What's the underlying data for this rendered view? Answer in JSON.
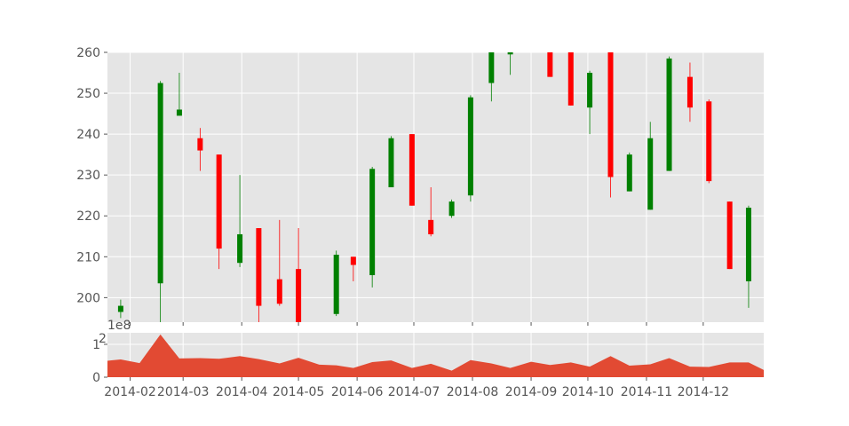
{
  "chart_data": {
    "type": "candlestick",
    "panels": [
      "price",
      "volume"
    ],
    "price": {
      "ylim": [
        194,
        260
      ],
      "yticks": [
        200,
        210,
        220,
        230,
        240,
        250,
        260
      ],
      "grid": true,
      "up_color": "#008000",
      "down_color": "#ff0000",
      "candles": [
        {
          "date": "2014-01-27",
          "open": 196.5,
          "high": 199.5,
          "low": 195.0,
          "close": 198.0
        },
        {
          "date": "2014-02-17",
          "open": 203.5,
          "high": 253.0,
          "low": 194.0,
          "close": 252.5
        },
        {
          "date": "2014-02-27",
          "open": 244.5,
          "high": 255.0,
          "low": 244.5,
          "close": 246.0
        },
        {
          "date": "2014-03-10",
          "open": 239.0,
          "high": 241.5,
          "low": 231.0,
          "close": 236.0
        },
        {
          "date": "2014-03-20",
          "open": 235.0,
          "high": 235.0,
          "low": 207.0,
          "close": 212.0
        },
        {
          "date": "2014-03-31",
          "open": 208.5,
          "high": 230.0,
          "low": 207.5,
          "close": 215.5
        },
        {
          "date": "2014-04-10",
          "open": 217.0,
          "high": 217.0,
          "low": 194.0,
          "close": 198.0
        },
        {
          "date": "2014-04-21",
          "open": 204.5,
          "high": 219.0,
          "low": 198.0,
          "close": 198.5
        },
        {
          "date": "2014-05-01",
          "open": 207.0,
          "high": 217.0,
          "low": 194.0,
          "close": 194.0
        },
        {
          "date": "2014-05-21",
          "open": 196.0,
          "high": 211.5,
          "low": 195.5,
          "close": 210.5
        },
        {
          "date": "2014-05-30",
          "open": 210.0,
          "high": 210.0,
          "low": 204.0,
          "close": 208.0
        },
        {
          "date": "2014-06-09",
          "open": 205.5,
          "high": 232.0,
          "low": 202.5,
          "close": 231.5
        },
        {
          "date": "2014-06-19",
          "open": 227.0,
          "high": 239.5,
          "low": 227.0,
          "close": 239.0
        },
        {
          "date": "2014-06-30",
          "open": 240.0,
          "high": 240.0,
          "low": 222.5,
          "close": 222.5
        },
        {
          "date": "2014-07-10",
          "open": 219.0,
          "high": 227.0,
          "low": 215.0,
          "close": 215.5
        },
        {
          "date": "2014-07-21",
          "open": 220.0,
          "high": 224.0,
          "low": 219.5,
          "close": 223.5
        },
        {
          "date": "2014-07-31",
          "open": 225.0,
          "high": 249.5,
          "low": 223.5,
          "close": 249.0
        },
        {
          "date": "2014-08-11",
          "open": 252.5,
          "high": 260.0,
          "low": 248.0,
          "close": 260.0
        },
        {
          "date": "2014-08-21",
          "open": 259.5,
          "high": 260.0,
          "low": 254.5,
          "close": 260.0
        },
        {
          "date": "2014-09-11",
          "open": 260.0,
          "high": 260.0,
          "low": 254.0,
          "close": 254.0
        },
        {
          "date": "2014-09-22",
          "open": 260.0,
          "high": 260.0,
          "low": 247.0,
          "close": 247.0
        },
        {
          "date": "2014-10-02",
          "open": 246.5,
          "high": 255.5,
          "low": 240.0,
          "close": 255.0
        },
        {
          "date": "2014-10-13",
          "open": 260.0,
          "high": 260.0,
          "low": 224.5,
          "close": 229.5
        },
        {
          "date": "2014-10-23",
          "open": 226.0,
          "high": 235.5,
          "low": 226.0,
          "close": 235.0
        },
        {
          "date": "2014-11-03",
          "open": 221.5,
          "high": 243.0,
          "low": 221.5,
          "close": 239.0
        },
        {
          "date": "2014-11-13",
          "open": 231.0,
          "high": 259.0,
          "low": 231.0,
          "close": 258.5
        },
        {
          "date": "2014-11-24",
          "open": 254.0,
          "high": 257.5,
          "low": 243.0,
          "close": 246.5
        },
        {
          "date": "2014-12-04",
          "open": 248.0,
          "high": 248.5,
          "low": 228.0,
          "close": 228.5
        },
        {
          "date": "2014-12-15",
          "open": 223.5,
          "high": 223.5,
          "low": 207.0,
          "close": 207.0
        },
        {
          "date": "2014-12-25",
          "open": 204.0,
          "high": 222.5,
          "low": 197.5,
          "close": 222.0
        }
      ]
    },
    "volume": {
      "type": "area",
      "color": "#e24a33",
      "offset_label": "1e8",
      "ylim": [
        0,
        1.35
      ],
      "yticks": [
        0,
        1
      ],
      "ytick_labels": [
        "0",
        "1"
      ],
      "top_tick_label_partial": "2",
      "x_end": "2014-12-25",
      "points": [
        {
          "date": "2014-01-20",
          "value": 0.5
        },
        {
          "date": "2014-01-27",
          "value": 0.54
        },
        {
          "date": "2014-02-06",
          "value": 0.43
        },
        {
          "date": "2014-02-17",
          "value": 1.3
        },
        {
          "date": "2014-02-27",
          "value": 0.57
        },
        {
          "date": "2014-03-10",
          "value": 0.58
        },
        {
          "date": "2014-03-20",
          "value": 0.56
        },
        {
          "date": "2014-03-31",
          "value": 0.64
        },
        {
          "date": "2014-04-10",
          "value": 0.55
        },
        {
          "date": "2014-04-21",
          "value": 0.42
        },
        {
          "date": "2014-05-01",
          "value": 0.59
        },
        {
          "date": "2014-05-12",
          "value": 0.38
        },
        {
          "date": "2014-05-21",
          "value": 0.36
        },
        {
          "date": "2014-05-30",
          "value": 0.28
        },
        {
          "date": "2014-06-09",
          "value": 0.46
        },
        {
          "date": "2014-06-19",
          "value": 0.51
        },
        {
          "date": "2014-06-30",
          "value": 0.28
        },
        {
          "date": "2014-07-10",
          "value": 0.41
        },
        {
          "date": "2014-07-21",
          "value": 0.2
        },
        {
          "date": "2014-07-31",
          "value": 0.52
        },
        {
          "date": "2014-08-11",
          "value": 0.42
        },
        {
          "date": "2014-08-21",
          "value": 0.28
        },
        {
          "date": "2014-09-01",
          "value": 0.47
        },
        {
          "date": "2014-09-11",
          "value": 0.37
        },
        {
          "date": "2014-09-22",
          "value": 0.45
        },
        {
          "date": "2014-10-02",
          "value": 0.32
        },
        {
          "date": "2014-10-13",
          "value": 0.64
        },
        {
          "date": "2014-10-23",
          "value": 0.35
        },
        {
          "date": "2014-11-03",
          "value": 0.39
        },
        {
          "date": "2014-11-13",
          "value": 0.58
        },
        {
          "date": "2014-11-24",
          "value": 0.32
        },
        {
          "date": "2014-12-04",
          "value": 0.31
        },
        {
          "date": "2014-12-15",
          "value": 0.45
        },
        {
          "date": "2014-12-25",
          "value": 0.45
        },
        {
          "date": "2015-01-02",
          "value": 0.22
        }
      ]
    },
    "x_axis": {
      "start": "2014-01-20",
      "end": "2015-01-02",
      "tick_dates": [
        "2014-02-01",
        "2014-03-01",
        "2014-04-01",
        "2014-05-01",
        "2014-06-01",
        "2014-07-01",
        "2014-08-01",
        "2014-09-01",
        "2014-10-01",
        "2014-11-01",
        "2014-12-01"
      ],
      "tick_labels": [
        "2014-02",
        "2014-03",
        "2014-04",
        "2014-05",
        "2014-06",
        "2014-07",
        "2014-08",
        "2014-09",
        "2014-10",
        "2014-11",
        "2014-12"
      ]
    }
  }
}
